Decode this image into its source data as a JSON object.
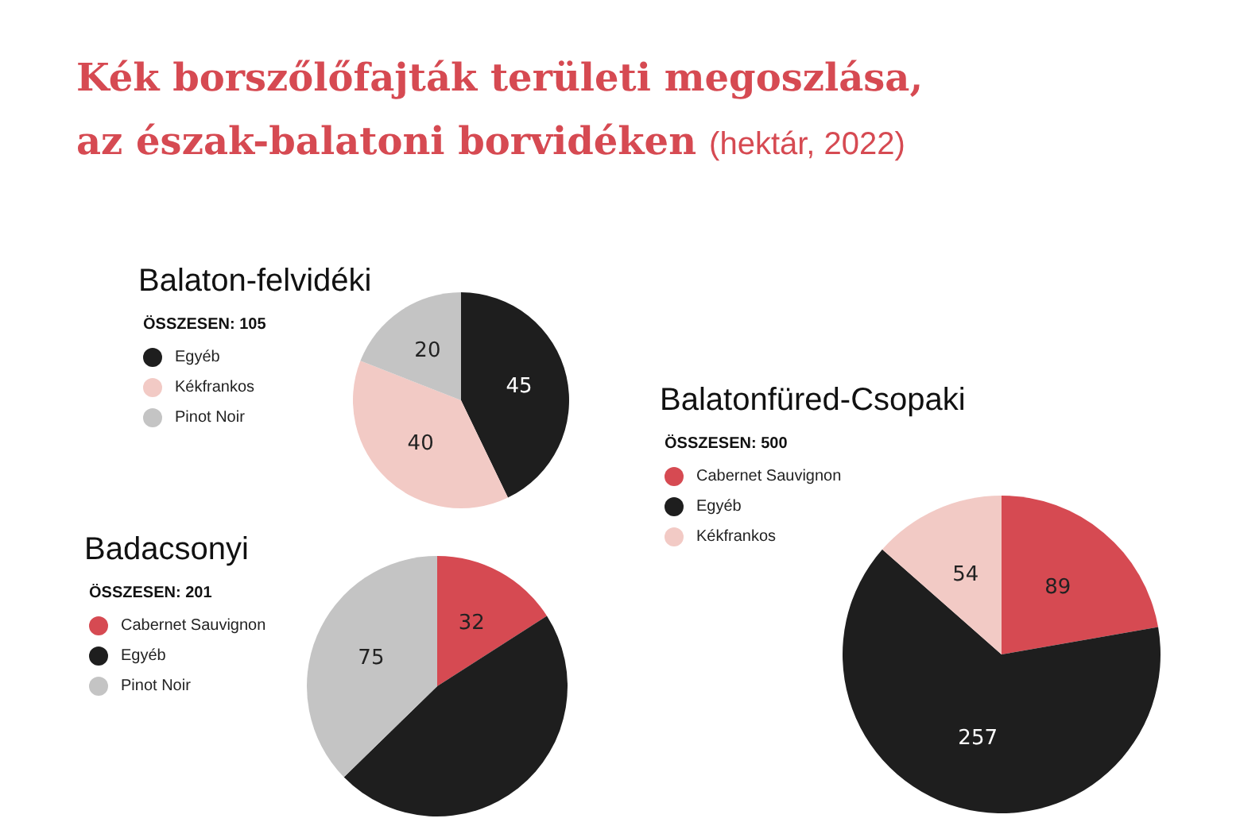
{
  "chart_data": [
    {
      "type": "other",
      "title": "Kék borszőlőfajták területi megoszlása,\naz észak-balatoni borvidéken",
      "subtitle": "(hektár, 2022)"
    },
    {
      "type": "pie",
      "title": "Balaton-felvidéki",
      "subtitle": "ÖSSZESEN: 105",
      "categories": [
        "Egyéb",
        "Kékfrankos",
        "Pinot Noir"
      ],
      "values": [
        45,
        40,
        20
      ],
      "colors": [
        "#1e1e1e",
        "#f2cac5",
        "#c4c4c4"
      ],
      "value_labels": [
        "45",
        "40",
        "20"
      ],
      "legend": "left"
    },
    {
      "type": "pie",
      "title": "Balatonfüred-Csopaki",
      "subtitle": "ÖSSZESEN: 500",
      "categories": [
        "Cabernet Sauvignon",
        "Egyéb",
        "Kékfrankos"
      ],
      "values": [
        89,
        257,
        54
      ],
      "colors": [
        "#d64a52",
        "#1e1e1e",
        "#f2cac5"
      ],
      "value_labels": [
        "89",
        "257",
        "54"
      ],
      "legend": "left"
    },
    {
      "type": "pie",
      "title": "Badacsonyi",
      "subtitle": "ÖSSZESEN: 201",
      "categories": [
        "Cabernet Sauvignon",
        "Egyéb",
        "Pinot Noir"
      ],
      "values": [
        32,
        94,
        75
      ],
      "colors": [
        "#d64a52",
        "#1e1e1e",
        "#c4c4c4"
      ],
      "value_labels": [
        "32",
        null,
        "75"
      ],
      "legend": "left"
    }
  ]
}
